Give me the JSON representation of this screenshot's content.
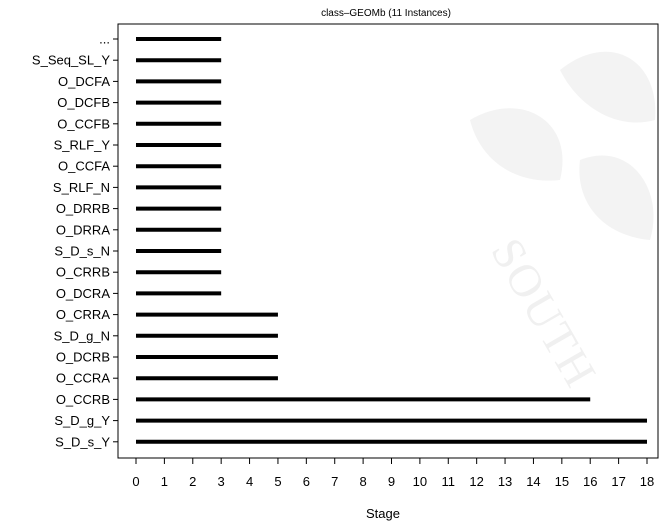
{
  "chart_data": {
    "type": "bar",
    "orientation": "horizontal",
    "title": "class–GEOMb (11 Instances)",
    "xlabel": "Stage",
    "ylabel": "",
    "xlim": [
      0,
      18
    ],
    "x_ticks": [
      0,
      1,
      2,
      3,
      4,
      5,
      6,
      7,
      8,
      9,
      10,
      11,
      12,
      13,
      14,
      15,
      16,
      17,
      18
    ],
    "grid": false,
    "bar_color": "#000000",
    "categories": [
      "...",
      "S_Seq_SL_Y",
      "O_DCFA",
      "O_DCFB",
      "O_CCFB",
      "S_RLF_Y",
      "O_CCFA",
      "S_RLF_N",
      "O_DRRB",
      "O_DRRA",
      "S_D_s_N",
      "O_CRRB",
      "O_DCRA",
      "O_CRRA",
      "S_D_g_N",
      "O_DCRB",
      "O_CCRA",
      "O_CCRB",
      "S_D_g_Y",
      "S_D_s_Y"
    ],
    "ranges": [
      [
        0,
        3
      ],
      [
        0,
        3
      ],
      [
        0,
        3
      ],
      [
        0,
        3
      ],
      [
        0,
        3
      ],
      [
        0,
        3
      ],
      [
        0,
        3
      ],
      [
        0,
        3
      ],
      [
        0,
        3
      ],
      [
        0,
        3
      ],
      [
        0,
        3
      ],
      [
        0,
        3
      ],
      [
        0,
        3
      ],
      [
        0,
        5
      ],
      [
        0,
        5
      ],
      [
        0,
        5
      ],
      [
        0,
        5
      ],
      [
        0,
        16
      ],
      [
        0,
        18
      ],
      [
        0,
        18
      ]
    ]
  }
}
